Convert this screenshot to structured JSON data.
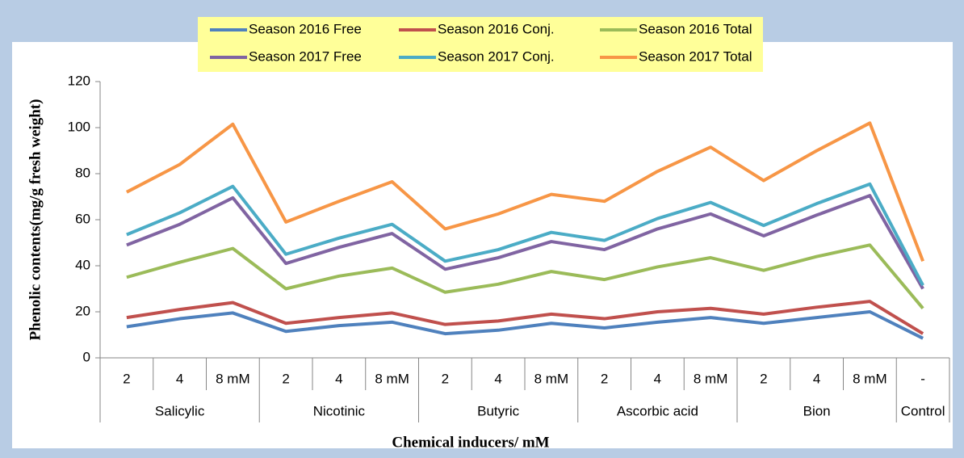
{
  "chart_data": {
    "type": "line",
    "y_label": "Phenolic contents(mg/g fresh weight)",
    "x_label": "Chemical inducers/ mM",
    "groups": [
      {
        "name": "Salicylic",
        "categories": [
          "2",
          "4",
          "8 mM"
        ]
      },
      {
        "name": "Nicotinic",
        "categories": [
          "2",
          "4",
          "8 mM"
        ]
      },
      {
        "name": "Butyric",
        "categories": [
          "2",
          "4",
          "8 mM"
        ]
      },
      {
        "name": "Ascorbic acid",
        "categories": [
          "2",
          "4",
          "8 mM"
        ]
      },
      {
        "name": "Bion",
        "categories": [
          "2",
          "4",
          "8 mM"
        ]
      },
      {
        "name": "Control",
        "categories": [
          "-"
        ]
      }
    ],
    "series": [
      {
        "name": "Season 2016 Free",
        "color": "#4f81bd",
        "values": [
          13.5,
          17,
          19.5,
          11.5,
          14,
          15.5,
          10.5,
          12,
          15,
          13,
          15.5,
          17.5,
          15,
          17.5,
          20,
          8.5
        ]
      },
      {
        "name": "Season 2016 Conj.",
        "color": "#c0504d",
        "values": [
          17.5,
          21,
          24,
          15,
          17.5,
          19.5,
          14.5,
          16,
          19,
          17,
          20,
          21.5,
          19,
          22,
          24.5,
          10.5
        ]
      },
      {
        "name": "Season 2016 Total",
        "color": "#9bbb59",
        "values": [
          35,
          41.5,
          47.5,
          30,
          35.5,
          39,
          28.5,
          32,
          37.5,
          34,
          39.5,
          43.5,
          38,
          44,
          49,
          21.5
        ]
      },
      {
        "name": "Season 2017 Free",
        "color": "#8064a2",
        "values": [
          49,
          58,
          69.5,
          41,
          48,
          54,
          38.5,
          43.5,
          50.5,
          47,
          56,
          62.5,
          53,
          62,
          70.5,
          30
        ]
      },
      {
        "name": "Season 2017 Conj.",
        "color": "#4bacc6",
        "values": [
          53.5,
          63,
          74.5,
          45,
          52,
          58,
          42,
          47,
          54.5,
          51,
          60.5,
          67.5,
          57.5,
          67,
          75.5,
          31.5
        ]
      },
      {
        "name": "Season 2017 Total",
        "color": "#f79646",
        "values": [
          72,
          84,
          101.5,
          59,
          68,
          76.5,
          56,
          62.5,
          71,
          68,
          81,
          91.5,
          77,
          90,
          102,
          42
        ]
      }
    ],
    "ylim": [
      0,
      120
    ],
    "yticks": [
      0,
      20,
      40,
      60,
      80,
      100,
      120
    ],
    "grid": false
  }
}
